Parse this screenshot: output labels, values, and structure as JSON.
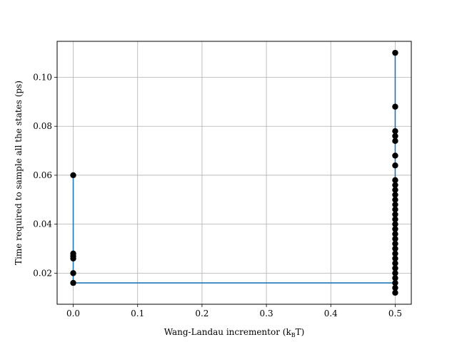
{
  "chart_data": {
    "type": "scatter",
    "title": "",
    "xlabel": "Wang-Landau incrementor (k",
    "xlabel_sub": "B",
    "xlabel_tail": "T)",
    "ylabel": "Time required to sample all the states (ps)",
    "xlim": [
      -0.025,
      0.525
    ],
    "ylim": [
      0.0073,
      0.1147
    ],
    "x_ticks": [
      0.0,
      0.1,
      0.2,
      0.3,
      0.4,
      0.5
    ],
    "x_tick_labels": [
      "0.0",
      "0.1",
      "0.2",
      "0.3",
      "0.4",
      "0.5"
    ],
    "y_ticks": [
      0.02,
      0.04,
      0.06,
      0.08,
      0.1
    ],
    "y_tick_labels": [
      "0.02",
      "0.04",
      "0.06",
      "0.08",
      "0.10"
    ],
    "grid": true,
    "colors": {
      "points": "#000000",
      "line": "#1f77b4",
      "grid": "#b0b0b0"
    },
    "scatter_points": [
      {
        "x": 0.0,
        "y": 0.06
      },
      {
        "x": 0.0,
        "y": 0.028
      },
      {
        "x": 0.0,
        "y": 0.027
      },
      {
        "x": 0.0,
        "y": 0.026
      },
      {
        "x": 0.0,
        "y": 0.02
      },
      {
        "x": 0.0,
        "y": 0.016
      },
      {
        "x": 0.5,
        "y": 0.11
      },
      {
        "x": 0.5,
        "y": 0.088
      },
      {
        "x": 0.5,
        "y": 0.078
      },
      {
        "x": 0.5,
        "y": 0.076
      },
      {
        "x": 0.5,
        "y": 0.074
      },
      {
        "x": 0.5,
        "y": 0.068
      },
      {
        "x": 0.5,
        "y": 0.064
      },
      {
        "x": 0.5,
        "y": 0.058
      },
      {
        "x": 0.5,
        "y": 0.056
      },
      {
        "x": 0.5,
        "y": 0.054
      },
      {
        "x": 0.5,
        "y": 0.052
      },
      {
        "x": 0.5,
        "y": 0.05
      },
      {
        "x": 0.5,
        "y": 0.048
      },
      {
        "x": 0.5,
        "y": 0.046
      },
      {
        "x": 0.5,
        "y": 0.044
      },
      {
        "x": 0.5,
        "y": 0.042
      },
      {
        "x": 0.5,
        "y": 0.04
      },
      {
        "x": 0.5,
        "y": 0.038
      },
      {
        "x": 0.5,
        "y": 0.036
      },
      {
        "x": 0.5,
        "y": 0.034
      },
      {
        "x": 0.5,
        "y": 0.032
      },
      {
        "x": 0.5,
        "y": 0.03
      },
      {
        "x": 0.5,
        "y": 0.028
      },
      {
        "x": 0.5,
        "y": 0.026
      },
      {
        "x": 0.5,
        "y": 0.024
      },
      {
        "x": 0.5,
        "y": 0.022
      },
      {
        "x": 0.5,
        "y": 0.02
      },
      {
        "x": 0.5,
        "y": 0.018
      },
      {
        "x": 0.5,
        "y": 0.016
      },
      {
        "x": 0.5,
        "y": 0.014
      },
      {
        "x": 0.5,
        "y": 0.012
      }
    ],
    "line_points": [
      {
        "x": 0.0,
        "y": 0.06
      },
      {
        "x": 0.0,
        "y": 0.016
      },
      {
        "x": 0.5,
        "y": 0.016
      },
      {
        "x": 0.5,
        "y": 0.012
      },
      {
        "x": 0.5,
        "y": 0.11
      }
    ]
  }
}
